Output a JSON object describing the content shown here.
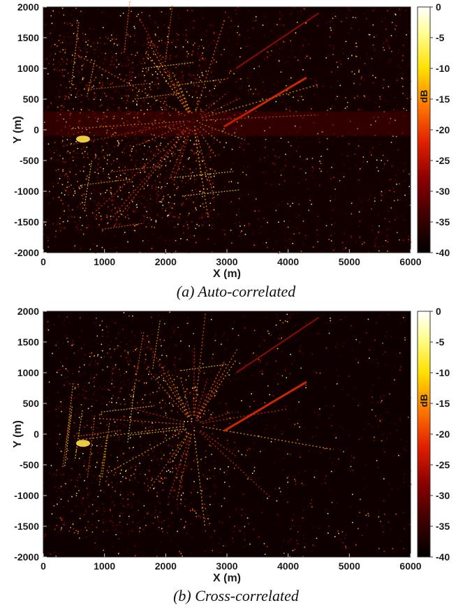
{
  "colors": {
    "colormap": [
      "#000000",
      "#3a0000",
      "#8b0000",
      "#e02000",
      "#ff7a00",
      "#ffe000",
      "#ffff99",
      "#ffffff"
    ]
  },
  "chart_data": [
    {
      "type": "heatmap",
      "caption": "(a) Auto-correlated",
      "xlabel": "X (m)",
      "ylabel": "Y (m)",
      "xlim": [
        0,
        6000
      ],
      "ylim": [
        -2000,
        2000
      ],
      "xticks": [
        "0",
        "1000",
        "2000",
        "3000",
        "4000",
        "5000",
        "6000"
      ],
      "yticks": [
        "2000",
        "1500",
        "1000",
        "500",
        "0",
        "-500",
        "-1000",
        "-1500",
        "-2000"
      ],
      "colorbar": {
        "label": "dB",
        "range": [
          -40,
          0
        ],
        "ticks": [
          "0",
          "-5",
          "-10",
          "-15",
          "-20",
          "-25",
          "-30",
          "-35",
          "-40"
        ]
      }
    },
    {
      "type": "heatmap",
      "caption": "(b) Cross-correlated",
      "xlabel": "X (m)",
      "ylabel": "Y (m)",
      "xlim": [
        0,
        6000
      ],
      "ylim": [
        -2000,
        2000
      ],
      "xticks": [
        "0",
        "1000",
        "2000",
        "3000",
        "4000",
        "5000",
        "6000"
      ],
      "yticks": [
        "2000",
        "1500",
        "1000",
        "500",
        "0",
        "-500",
        "-1000",
        "-1500",
        "-2000"
      ],
      "colorbar": {
        "label": "dB",
        "range": [
          -40,
          0
        ],
        "ticks": [
          "0",
          "-5",
          "-10",
          "-15",
          "-20",
          "-25",
          "-30",
          "-35",
          "-40"
        ]
      }
    }
  ]
}
